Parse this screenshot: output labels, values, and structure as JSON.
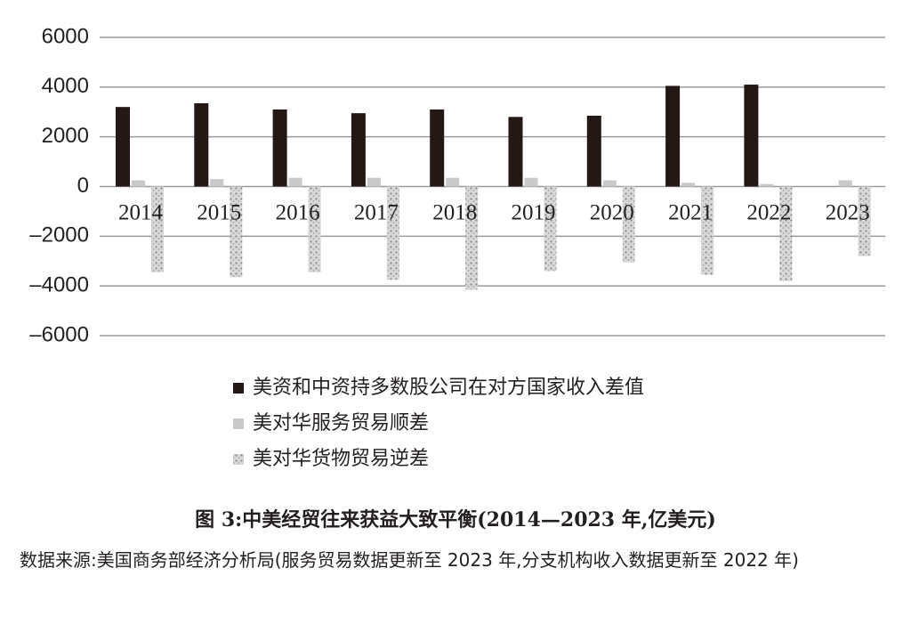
{
  "chart_data": {
    "type": "bar",
    "categories": [
      "2014",
      "2015",
      "2016",
      "2017",
      "2018",
      "2019",
      "2020",
      "2021",
      "2022",
      "2023"
    ],
    "series": [
      {
        "name": "美资和中资持多数股公司在对方国家收入差值",
        "color": "#231815",
        "values": [
          3200,
          3350,
          3100,
          2950,
          3100,
          2800,
          2850,
          4050,
          4100,
          null
        ]
      },
      {
        "name": "美对华服务贸易顺差",
        "color": "#c9c9c9",
        "values": [
          250,
          300,
          350,
          350,
          350,
          350,
          250,
          150,
          100,
          250
        ]
      },
      {
        "name": "美对华货物贸易逆差",
        "color": "#bdbdbd",
        "fill_pattern": "speckle",
        "values": [
          -3450,
          -3650,
          -3450,
          -3750,
          -4150,
          -3400,
          -3050,
          -3550,
          -3800,
          -2800
        ]
      }
    ],
    "ylim": [
      -6000,
      6000
    ],
    "yticks": [
      {
        "value": -6000,
        "label": "–6000"
      },
      {
        "value": -4000,
        "label": "–4000"
      },
      {
        "value": -2000,
        "label": "–2000"
      },
      0,
      2000,
      4000,
      6000
    ],
    "grid": true,
    "caption": "图 3:中美经贸往来获益大致平衡(2014—2023 年,亿美元)",
    "source_label": "数据来源:",
    "source_text": "美国商务部经济分析局(服务贸易数据更新至 2023 年,分支机构收入数据更新至 2022 年)"
  }
}
